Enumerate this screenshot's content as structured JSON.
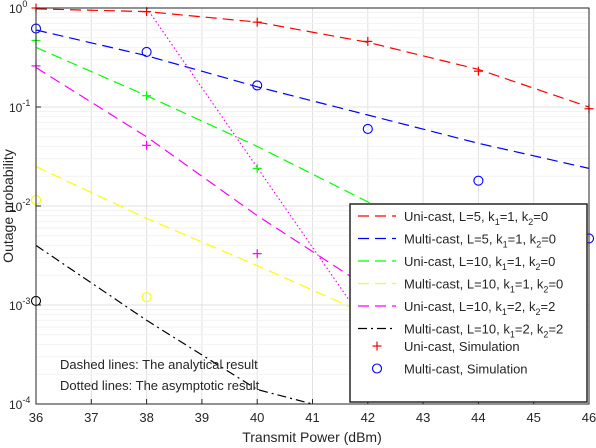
{
  "chart_data": {
    "type": "line",
    "xlabel": "Transmit Power (dBm)",
    "ylabel": "Outage probability",
    "xlim": [
      36,
      46
    ],
    "ylim": [
      0.0001,
      1
    ],
    "yscale": "log",
    "grid": true,
    "legend_position": "right",
    "x_ticks": [
      {
        "value": 36,
        "label": "36"
      },
      {
        "value": 37,
        "label": "37"
      },
      {
        "value": 38,
        "label": "38"
      },
      {
        "value": 39,
        "label": "39"
      },
      {
        "value": 40,
        "label": "40"
      },
      {
        "value": 41,
        "label": "41"
      },
      {
        "value": 42,
        "label": "42"
      },
      {
        "value": 43,
        "label": "43"
      },
      {
        "value": 44,
        "label": "44"
      },
      {
        "value": 45,
        "label": "45"
      },
      {
        "value": 46,
        "label": "46"
      }
    ],
    "y_ticks": [
      {
        "value": 0.0001,
        "base": "10",
        "exp": "-4"
      },
      {
        "value": 0.001,
        "base": "10",
        "exp": "-3"
      },
      {
        "value": 0.01,
        "base": "10",
        "exp": "-2"
      },
      {
        "value": 0.1,
        "base": "10",
        "exp": "-1"
      },
      {
        "value": 1,
        "base": "10",
        "exp": "0"
      }
    ],
    "series": [
      {
        "name_parts": [
          "Uni-cast, L=5, k",
          "1",
          "=1, k",
          "2",
          "=0"
        ],
        "style": "dash",
        "color": "#ff0000",
        "x": [
          36,
          38,
          40,
          42,
          44,
          46
        ],
        "y": [
          0.98,
          0.92,
          0.72,
          0.45,
          0.24,
          0.1
        ]
      },
      {
        "name_parts": [
          "Multi-cast, L=5, k",
          "1",
          "=1, k",
          "2",
          "=0"
        ],
        "style": "dash",
        "color": "#0000ff",
        "x": [
          36,
          38,
          40,
          42,
          44,
          46
        ],
        "y": [
          0.6,
          0.33,
          0.16,
          0.083,
          0.043,
          0.024
        ]
      },
      {
        "name_parts": [
          "Uni-cast, L=10, k",
          "1",
          "=1, k",
          "2",
          "=0"
        ],
        "style": "dash",
        "color": "#00ff00",
        "x": [
          36,
          38,
          40,
          42,
          44
        ],
        "y": [
          0.4,
          0.13,
          0.04,
          0.011,
          0.003
        ]
      },
      {
        "name_parts": [
          "Multi-cast, L=10, k",
          "1",
          "=1, k",
          "2",
          "=0"
        ],
        "style": "dash",
        "color": "#ffff00",
        "x": [
          36,
          38,
          40,
          42
        ],
        "y": [
          0.025,
          0.0075,
          0.0025,
          0.0008
        ]
      },
      {
        "name_parts": [
          "Uni-cast, L=10, k",
          "1",
          "=2, k",
          "2",
          "=2"
        ],
        "style": "dash",
        "color": "#ff00ff",
        "x": [
          36,
          38,
          40,
          42
        ],
        "y": [
          0.25,
          0.05,
          0.008,
          0.0015
        ]
      },
      {
        "name_parts": [
          "Multi-cast, L=10, k",
          "1",
          "=2, k",
          "2",
          "=2"
        ],
        "style": "dashdot",
        "color": "#000000",
        "x": [
          36,
          38,
          40,
          41
        ],
        "y": [
          0.004,
          0.0007,
          0.00014,
          0.0001
        ]
      }
    ],
    "asymptote": {
      "style": "dot",
      "color": "#ff00ff",
      "x": [
        38,
        42
      ],
      "y": [
        1,
        0.0006
      ]
    },
    "simulation_markers": [
      {
        "name": "Uni-cast, Simulation",
        "marker": "plus",
        "color": "#ff0000",
        "x": [
          36,
          38,
          40,
          42,
          44,
          46
        ],
        "y": [
          1,
          0.92,
          0.72,
          0.46,
          0.23,
          0.096
        ]
      },
      {
        "name": "Multi-cast, Simulation",
        "marker": "circle",
        "color": "#0000ff",
        "x": [
          36,
          38,
          40,
          42,
          44,
          46
        ],
        "y": [
          0.62,
          0.36,
          0.165,
          0.06,
          0.018,
          0.0047
        ]
      },
      {
        "marker": "plus",
        "color": "#00ff00",
        "x": [
          36,
          38,
          40
        ],
        "y": [
          0.47,
          0.13,
          0.024
        ]
      },
      {
        "marker": "circle",
        "color": "#ffff00",
        "x": [
          36,
          38
        ],
        "y": [
          0.0115,
          0.0012
        ]
      },
      {
        "marker": "plus",
        "color": "#ff00ff",
        "x": [
          36,
          38,
          40
        ],
        "y": [
          0.26,
          0.041,
          0.0033
        ]
      },
      {
        "marker": "circle",
        "color": "#000000",
        "x": [
          36
        ],
        "y": [
          0.0011
        ]
      }
    ],
    "annotations": [
      "Dashed lines: The analytical result",
      "Dotted lines: The asymptotic result"
    ]
  }
}
